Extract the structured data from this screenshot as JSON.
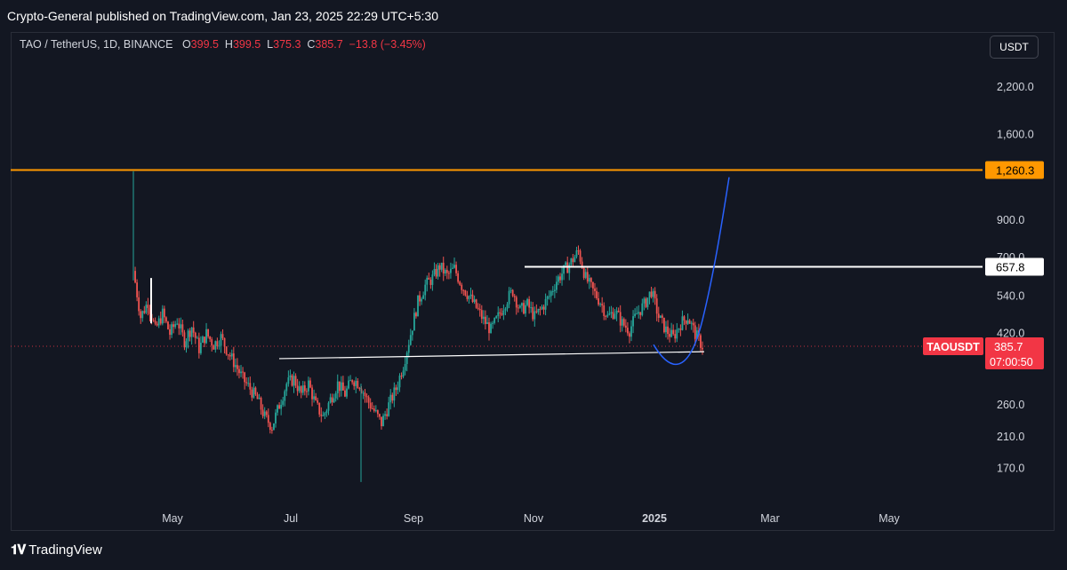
{
  "header": {
    "publisher_line": "Crypto-General published on TradingView.com, Jan 23, 2025 22:29 UTC+5:30"
  },
  "legend": {
    "symbol": "TAO / TetherUS, 1D, BINANCE",
    "o_label": "O",
    "o_value": "399.5",
    "h_label": "H",
    "h_value": "399.5",
    "l_label": "L",
    "l_value": "375.3",
    "c_label": "C",
    "c_value": "385.7",
    "change": "−13.8 (−3.45%)"
  },
  "currency_button": "USDT",
  "colors": {
    "up": "#26a69a",
    "down": "#ef5350",
    "resistance": "#ff9800",
    "projection": "#2962ff",
    "price_tag": "#f23645"
  },
  "chart_data": {
    "type": "candlestick",
    "y_scale": "log",
    "ylim": [
      140,
      2600
    ],
    "x_ticks": [
      "May",
      "Jul",
      "Sep",
      "Nov",
      "2025",
      "Mar",
      "May"
    ],
    "y_ticks": [
      "2,200.0",
      "1,600.0",
      "900.0",
      "700.0",
      "540.0",
      "420.0",
      "260.0",
      "210.0",
      "170.0"
    ],
    "y_tick_values": [
      2200,
      1600,
      900,
      700,
      540,
      420,
      260,
      210,
      170
    ],
    "price_labels": [
      {
        "text": "1,260.3",
        "value": 1260.3,
        "style": "orange"
      },
      {
        "text": "657.8",
        "value": 657.8,
        "style": "white"
      }
    ],
    "symbol_tag": "TAOUSDT",
    "last_price": "385.7",
    "countdown": "07:00:50",
    "last_value": 385.7,
    "horizontal_lines": [
      {
        "name": "resistance-line",
        "value": 1260.3,
        "color": "#ff9800"
      },
      {
        "name": "neckline-line",
        "value": 657.8,
        "color": "#ffffff"
      }
    ],
    "series_path": [
      [
        0,
        640
      ],
      [
        4,
        470
      ],
      [
        8,
        520
      ],
      [
        12,
        430
      ],
      [
        16,
        480
      ],
      [
        20,
        420
      ],
      [
        24,
        460
      ],
      [
        28,
        400
      ],
      [
        32,
        440
      ],
      [
        36,
        380
      ],
      [
        40,
        420
      ],
      [
        44,
        390
      ],
      [
        48,
        410
      ],
      [
        52,
        370
      ],
      [
        56,
        340
      ],
      [
        60,
        310
      ],
      [
        64,
        290
      ],
      [
        68,
        270
      ],
      [
        72,
        240
      ],
      [
        76,
        225
      ],
      [
        80,
        260
      ],
      [
        84,
        300
      ],
      [
        88,
        310
      ],
      [
        92,
        280
      ],
      [
        96,
        300
      ],
      [
        100,
        260
      ],
      [
        104,
        240
      ],
      [
        108,
        270
      ],
      [
        112,
        300
      ],
      [
        116,
        280
      ],
      [
        120,
        310
      ],
      [
        124,
        300
      ],
      [
        128,
        270
      ],
      [
        132,
        250
      ],
      [
        136,
        230
      ],
      [
        140,
        260
      ],
      [
        144,
        290
      ],
      [
        148,
        340
      ],
      [
        152,
        420
      ],
      [
        156,
        520
      ],
      [
        160,
        580
      ],
      [
        164,
        610
      ],
      [
        168,
        660
      ],
      [
        172,
        620
      ],
      [
        176,
        650
      ],
      [
        180,
        580
      ],
      [
        184,
        540
      ],
      [
        188,
        500
      ],
      [
        192,
        460
      ],
      [
        196,
        430
      ],
      [
        200,
        470
      ],
      [
        204,
        520
      ],
      [
        208,
        560
      ],
      [
        212,
        490
      ],
      [
        216,
        510
      ],
      [
        220,
        470
      ],
      [
        224,
        500
      ],
      [
        228,
        540
      ],
      [
        232,
        600
      ],
      [
        236,
        640
      ],
      [
        240,
        680
      ],
      [
        244,
        730
      ],
      [
        248,
        610
      ],
      [
        252,
        560
      ],
      [
        256,
        520
      ],
      [
        260,
        470
      ],
      [
        264,
        490
      ],
      [
        268,
        450
      ],
      [
        272,
        430
      ],
      [
        276,
        480
      ],
      [
        280,
        510
      ],
      [
        284,
        560
      ],
      [
        288,
        470
      ],
      [
        292,
        430
      ],
      [
        296,
        410
      ],
      [
        300,
        450
      ],
      [
        304,
        470
      ],
      [
        308,
        420
      ],
      [
        312,
        386
      ]
    ]
  },
  "footer": {
    "brand": "TradingView"
  }
}
